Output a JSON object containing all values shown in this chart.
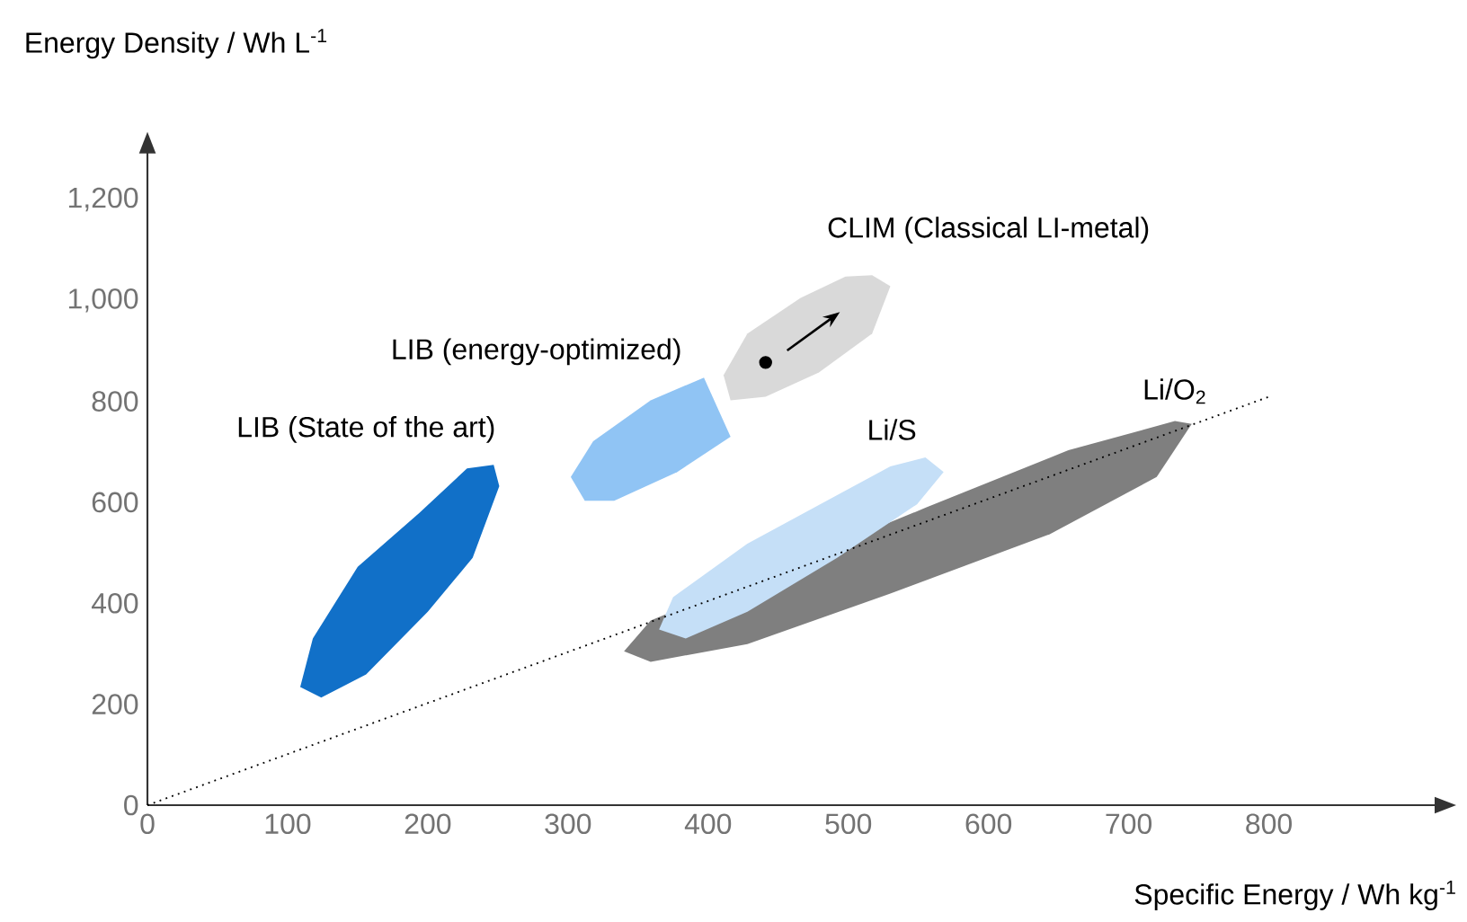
{
  "chart_data": {
    "type": "area",
    "xlabel": "Specific Energy / Wh kg$^{-1}$",
    "ylabel": "Energy Density / Wh L$^{-1}$",
    "xlim": [
      0,
      920
    ],
    "ylim": [
      0,
      1296
    ],
    "xticks": [
      0,
      100,
      200,
      300,
      400,
      500,
      600,
      700,
      800
    ],
    "yticks": [
      0,
      200,
      400,
      600,
      800,
      {
        "value": 1000,
        "label": "1,000"
      },
      {
        "value": 1200,
        "label": "1,200"
      }
    ],
    "grid": false,
    "series": [
      {
        "color": "#1170c8",
        "x": [
          247,
          251,
          232,
          200,
          156,
          124,
          109,
          118,
          150,
          194,
          228
        ],
        "values": [
          674,
          632,
          490,
          383,
          259,
          213,
          234,
          330,
          472,
          579,
          667
        ]
      },
      {
        "color": "#90c4f4",
        "x": [
          416,
          378,
          333,
          312,
          302,
          318,
          359,
          397
        ],
        "values": [
          730,
          660,
          603,
          603,
          650,
          721,
          802,
          847
        ]
      },
      {
        "color": "#d9d9d9",
        "x": [
          517,
          530,
          517,
          479,
          441,
          416,
          411,
          428,
          466,
          498
        ],
        "values": [
          1050,
          1028,
          934,
          857,
          809,
          802,
          852,
          934,
          1005,
          1047
        ]
      },
      {
        "color": "#7f7f7f",
        "x": [
          733,
          745,
          720,
          644,
          530,
          428,
          359,
          340,
          359,
          441,
          555,
          657
        ],
        "values": [
          761,
          755,
          650,
          537,
          419,
          319,
          284,
          305,
          366,
          null,
          589,
          703
        ]
      },
      {
        "color": "#c5dff7",
        "x": [
          555,
          568,
          549,
          492,
          428,
          384,
          365,
          375,
          428,
          492,
          530
        ],
        "values": [
          689,
          660,
          596,
          490,
          383,
          330,
          348,
          412,
          518,
          614,
          671
        ]
      },
      {
        "type": "line",
        "color": "#000000",
        "line_style": "dotted",
        "x": [
          0,
          800
        ],
        "values": [
          0,
          809
        ]
      },
      {
        "type": "scatter",
        "color": "#000000",
        "x": [
          441
        ],
        "values": [
          877
        ]
      }
    ],
    "annotations": [
      "LIB (State of the art)",
      "LIB (energy-optimized)",
      "CLIM (Classical LI-metal)",
      "Li/O$_{2}$",
      "Li/S"
    ]
  }
}
